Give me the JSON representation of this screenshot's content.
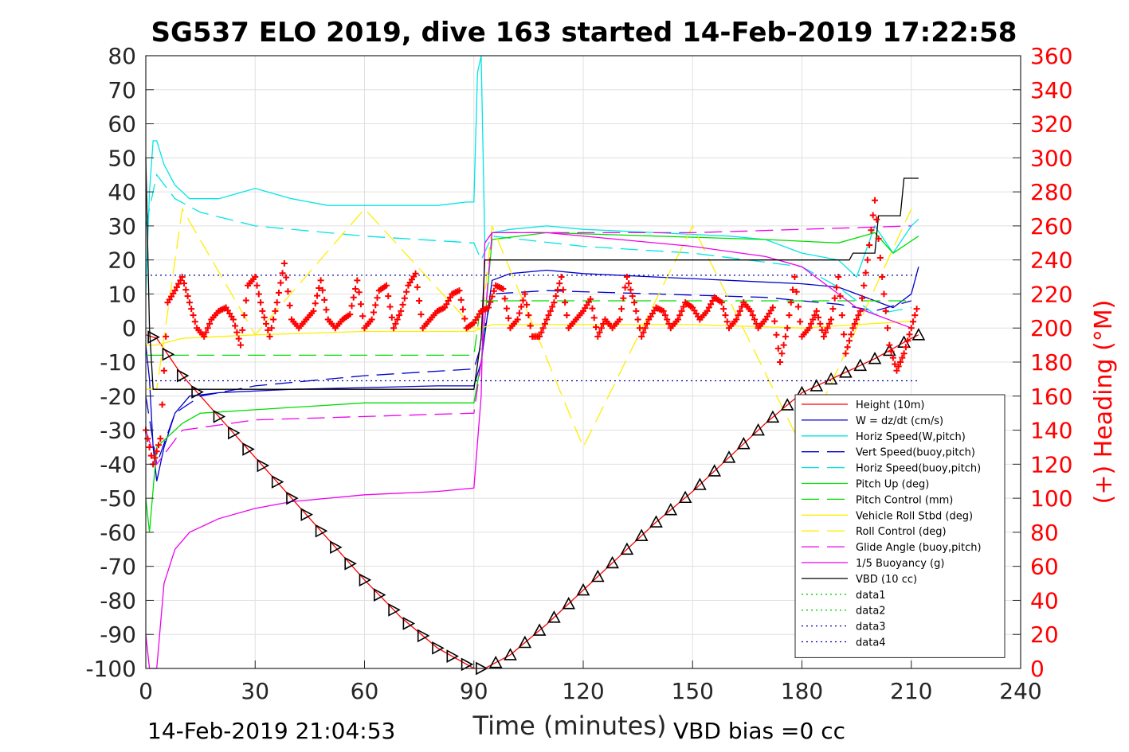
{
  "chart_data": {
    "type": "line",
    "title": "SG537 ELO 2019, dive 163 started 14-Feb-2019 17:22:58",
    "xlabel": "Time (minutes)",
    "ylabel_left": "",
    "ylabel_right": "(+) Heading (°M)",
    "xlim": [
      0,
      240
    ],
    "ylim_left": [
      -100,
      80
    ],
    "ylim_right": [
      0,
      360
    ],
    "x_ticks": [
      "0",
      "30",
      "60",
      "90",
      "120",
      "150",
      "180",
      "210",
      "240"
    ],
    "y_ticks_left": [
      "80",
      "70",
      "60",
      "50",
      "40",
      "30",
      "20",
      "10",
      "0",
      "-10",
      "-20",
      "-30",
      "-40",
      "-50",
      "-60",
      "-70",
      "-80",
      "-90",
      "-100"
    ],
    "y_ticks_right": [
      "360",
      "340",
      "320",
      "300",
      "280",
      "260",
      "240",
      "220",
      "200",
      "180",
      "160",
      "140",
      "120",
      "100",
      "80",
      "60",
      "40",
      "20",
      "0"
    ],
    "grid": true,
    "legend_position": "bottom-right",
    "series": [
      {
        "name": "Height (10m)",
        "color": "#ff0000",
        "style": "solid",
        "x": [
          0,
          3,
          10,
          20,
          30,
          40,
          50,
          60,
          70,
          80,
          90,
          93,
          100,
          110,
          120,
          130,
          140,
          150,
          160,
          170,
          180,
          190,
          200,
          205,
          210,
          212
        ],
        "y": [
          -2,
          -3,
          -14,
          -26,
          -38,
          -50,
          -62,
          -74,
          -85,
          -94,
          -100,
          -100,
          -96,
          -87,
          -77,
          -67,
          -57,
          -48,
          -38,
          -28,
          -19,
          -14,
          -9,
          -6,
          -3,
          -2
        ]
      },
      {
        "name": "W = dz/dt (cm/s)",
        "color": "#0000cc",
        "style": "solid",
        "x": [
          0,
          1,
          2,
          3,
          5,
          8,
          12,
          20,
          40,
          60,
          80,
          90,
          92,
          95,
          100,
          110,
          120,
          140,
          160,
          180,
          190,
          195,
          200,
          205,
          210,
          212
        ],
        "y": [
          -5,
          -15,
          -35,
          -45,
          -35,
          -25,
          -20,
          -19,
          -18,
          -17.5,
          -17,
          -17,
          -10,
          14,
          16,
          17,
          16,
          15,
          14,
          13,
          12,
          10,
          8,
          6,
          10,
          18
        ]
      },
      {
        "name": "Horiz Speed(W,pitch)",
        "color": "#00e5e5",
        "style": "solid",
        "x": [
          0,
          1,
          2,
          3,
          5,
          8,
          12,
          20,
          30,
          40,
          50,
          60,
          70,
          80,
          88,
          90,
          91,
          92,
          93,
          95,
          100,
          110,
          120,
          140,
          160,
          170,
          180,
          190,
          195,
          200,
          205,
          210,
          212
        ],
        "y": [
          10,
          40,
          55,
          55,
          48,
          42,
          38,
          38,
          41,
          38,
          36,
          36,
          36,
          36,
          37,
          37,
          75,
          80,
          25,
          28,
          29,
          30,
          29,
          28,
          27,
          26,
          22,
          20,
          15,
          30,
          22,
          30,
          32
        ]
      },
      {
        "name": "Vert Speed(buoy,pitch)",
        "color": "#0000cc",
        "style": "dash",
        "x": [
          0,
          3,
          8,
          15,
          30,
          60,
          90,
          92,
          95,
          110,
          140,
          170,
          190,
          200,
          210
        ],
        "y": [
          -20,
          -40,
          -25,
          -20,
          -17,
          -14,
          -12,
          -5,
          10,
          11,
          10,
          9,
          7,
          5,
          8
        ]
      },
      {
        "name": "Horiz Speed(buoy,pitch)",
        "color": "#00e5e5",
        "style": "dash",
        "x": [
          0,
          3,
          8,
          15,
          30,
          60,
          90,
          92,
          95,
          120,
          150,
          180,
          190,
          200,
          210
        ],
        "y": [
          30,
          45,
          38,
          34,
          30,
          27,
          25,
          20,
          27,
          24,
          22,
          18,
          12,
          4,
          6
        ]
      },
      {
        "name": "Pitch Up (deg)",
        "color": "#00dd00",
        "style": "solid",
        "x": [
          0,
          1,
          3,
          6,
          10,
          15,
          30,
          60,
          90,
          92,
          95,
          110,
          140,
          170,
          190,
          200,
          205,
          212
        ],
        "y": [
          -50,
          -60,
          -35,
          -32,
          -28,
          -25,
          -24,
          -22,
          -22,
          -10,
          26,
          28,
          27,
          26,
          25,
          28,
          22,
          27
        ]
      },
      {
        "name": "Pitch Control (mm)",
        "color": "#00dd00",
        "style": "dash",
        "x": [
          0,
          3,
          10,
          30,
          60,
          90,
          92,
          95,
          120,
          150,
          180,
          210
        ],
        "y": [
          -8,
          -8,
          -8,
          -8,
          -8,
          -8,
          8,
          8,
          8,
          8,
          8,
          8
        ]
      },
      {
        "name": "Vehicle Roll Stbd (deg)",
        "color": "#ffee00",
        "style": "solid",
        "x": [
          0,
          3,
          10,
          30,
          60,
          90,
          92,
          95,
          120,
          150,
          180,
          210
        ],
        "y": [
          -5,
          -5,
          -3,
          -2,
          -1,
          -1,
          0,
          1,
          1,
          1,
          0,
          2
        ]
      },
      {
        "name": "Roll Control (deg)",
        "color": "#ffee00",
        "style": "dash",
        "x": [
          0,
          3,
          10,
          30,
          60,
          90,
          92,
          95,
          120,
          150,
          180,
          210
        ],
        "y": [
          -18,
          -18,
          35,
          -2,
          35,
          0,
          0,
          30,
          -35,
          30,
          -35,
          35
        ]
      },
      {
        "name": "Glide Angle (buoy,pitch)",
        "color": "#ee00ee",
        "style": "dash",
        "x": [
          0,
          3,
          10,
          30,
          60,
          90,
          92,
          95,
          120,
          150,
          180,
          210
        ],
        "y": [
          -30,
          -40,
          -30,
          -27,
          -26,
          -25,
          -10,
          28,
          28,
          28,
          29,
          30
        ]
      },
      {
        "name": "1/5 Buoyancy (g)",
        "color": "#ee00ee",
        "style": "solid",
        "x": [
          0,
          1,
          2,
          3,
          5,
          8,
          12,
          20,
          30,
          40,
          60,
          80,
          90,
          92,
          93,
          95,
          110,
          130,
          150,
          170,
          180,
          190,
          195,
          200,
          205,
          210
        ],
        "y": [
          -90,
          -100,
          -100,
          -100,
          -75,
          -65,
          -60,
          -56,
          -53,
          -51,
          -49,
          -48,
          -47,
          -20,
          25,
          28,
          28,
          26,
          24,
          21,
          18,
          10,
          6,
          4,
          2,
          0
        ]
      },
      {
        "name": "VBD (10 cc)",
        "color": "#000000",
        "style": "solid",
        "x": [
          0,
          1,
          2,
          3,
          10,
          30,
          60,
          90,
          92,
          93,
          110,
          140,
          170,
          180,
          193,
          194,
          200,
          201,
          207,
          208,
          212
        ],
        "y": [
          50,
          0,
          -18,
          -18,
          -18,
          -18,
          -18,
          -18,
          -3,
          20,
          20,
          20,
          20,
          20,
          20,
          22,
          22,
          33,
          33,
          44,
          44
        ]
      },
      {
        "name": "data1",
        "color": "#00cc00",
        "style": "dot",
        "x": [],
        "y": []
      },
      {
        "name": "data2",
        "color": "#00cc00",
        "style": "dot",
        "x": [],
        "y": []
      },
      {
        "name": "data3",
        "color": "#0000aa",
        "style": "dot",
        "x": [
          0,
          212
        ],
        "y": [
          15.5,
          15.5
        ]
      },
      {
        "name": "data4",
        "color": "#0000aa",
        "style": "dot",
        "x": [
          0,
          212
        ],
        "y": [
          -15.5,
          -15.5
        ]
      }
    ],
    "heading_series": {
      "color": "#ff0000",
      "marker": "+",
      "x": [
        0,
        2,
        4,
        6,
        8,
        10,
        12,
        14,
        16,
        18,
        20,
        22,
        24,
        26,
        28,
        30,
        32,
        34,
        36,
        38,
        40,
        42,
        44,
        46,
        48,
        50,
        52,
        54,
        56,
        58,
        60,
        62,
        64,
        66,
        68,
        70,
        72,
        74,
        76,
        78,
        80,
        82,
        84,
        86,
        88,
        90,
        92,
        94,
        96,
        98,
        100,
        102,
        104,
        106,
        108,
        110,
        112,
        114,
        116,
        118,
        120,
        122,
        124,
        126,
        128,
        130,
        132,
        134,
        136,
        138,
        140,
        142,
        144,
        146,
        148,
        150,
        152,
        154,
        156,
        158,
        160,
        162,
        164,
        166,
        168,
        170,
        172,
        174,
        176,
        178,
        180,
        182,
        184,
        186,
        188,
        190,
        192,
        194,
        196,
        198,
        200,
        202,
        204,
        206,
        208,
        210,
        212
      ],
      "y": [
        140,
        120,
        135,
        215,
        222,
        230,
        215,
        200,
        195,
        205,
        210,
        212,
        205,
        190,
        225,
        230,
        210,
        195,
        215,
        238,
        205,
        200,
        205,
        210,
        228,
        205,
        200,
        205,
        208,
        228,
        200,
        205,
        222,
        225,
        200,
        210,
        225,
        232,
        200,
        205,
        210,
        212,
        220,
        222,
        200,
        203,
        210,
        212,
        225,
        223,
        200,
        205,
        220,
        195,
        195,
        205,
        215,
        230,
        200,
        205,
        210,
        217,
        195,
        205,
        200,
        205,
        230,
        215,
        195,
        205,
        212,
        210,
        200,
        205,
        215,
        212,
        205,
        210,
        218,
        215,
        200,
        205,
        215,
        210,
        200,
        205,
        212,
        180,
        200,
        230,
        195,
        200,
        210,
        195,
        205,
        230,
        185,
        200,
        210,
        240,
        275,
        230,
        190,
        175,
        185,
        200,
        215
      ]
    },
    "vbd_markers": {
      "x": [
        2,
        6,
        10,
        14,
        20,
        24,
        28,
        32,
        36,
        40,
        44,
        48,
        52,
        56,
        60,
        64,
        68,
        72,
        76,
        80,
        84,
        88,
        92,
        96,
        100,
        104,
        108,
        112,
        116,
        120,
        124,
        128,
        132,
        136,
        140,
        144,
        148,
        152,
        156,
        160,
        164,
        168,
        172,
        176,
        180,
        184,
        188,
        192,
        196,
        200,
        204,
        208,
        212
      ]
    }
  },
  "footer": {
    "left": "14-Feb-2019 21:04:53",
    "right": "VBD bias =0 cc"
  }
}
